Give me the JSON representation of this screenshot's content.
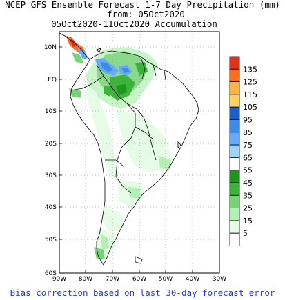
{
  "title": {
    "line1": "NCEP GFS Ensemble Forecast 1-7 Day Precipitation (mm)",
    "line2": "from: 05Oct2020",
    "line3": "05Oct2020-11Oct2020 Accumulation"
  },
  "footer": "Bias correction based on last 30-day forecast error",
  "map": {
    "lat_labels": [
      "10N",
      "EQ",
      "10S",
      "20S",
      "30S",
      "40S",
      "50S",
      "60S"
    ],
    "lon_labels": [
      "90W",
      "80W",
      "70W",
      "60W",
      "50W",
      "40W",
      "30W"
    ],
    "lat_range": [
      -60,
      15
    ],
    "lon_range": [
      -90,
      -30
    ]
  },
  "colorbar": {
    "levels": [
      "135",
      "125",
      "115",
      "105",
      "95",
      "85",
      "75",
      "65",
      "55",
      "45",
      "35",
      "25",
      "15",
      "5"
    ],
    "colors": [
      "#e1321e",
      "#fa6e1e",
      "#fcb43c",
      "#ffd164",
      "#1e5ec8",
      "#3c8ce6",
      "#64aaff",
      "#a0d2ff",
      "#ffffff",
      "#1e961e",
      "#3cb43c",
      "#78d278",
      "#b4f0b4",
      "#e6fce6",
      "#ffffff"
    ]
  }
}
